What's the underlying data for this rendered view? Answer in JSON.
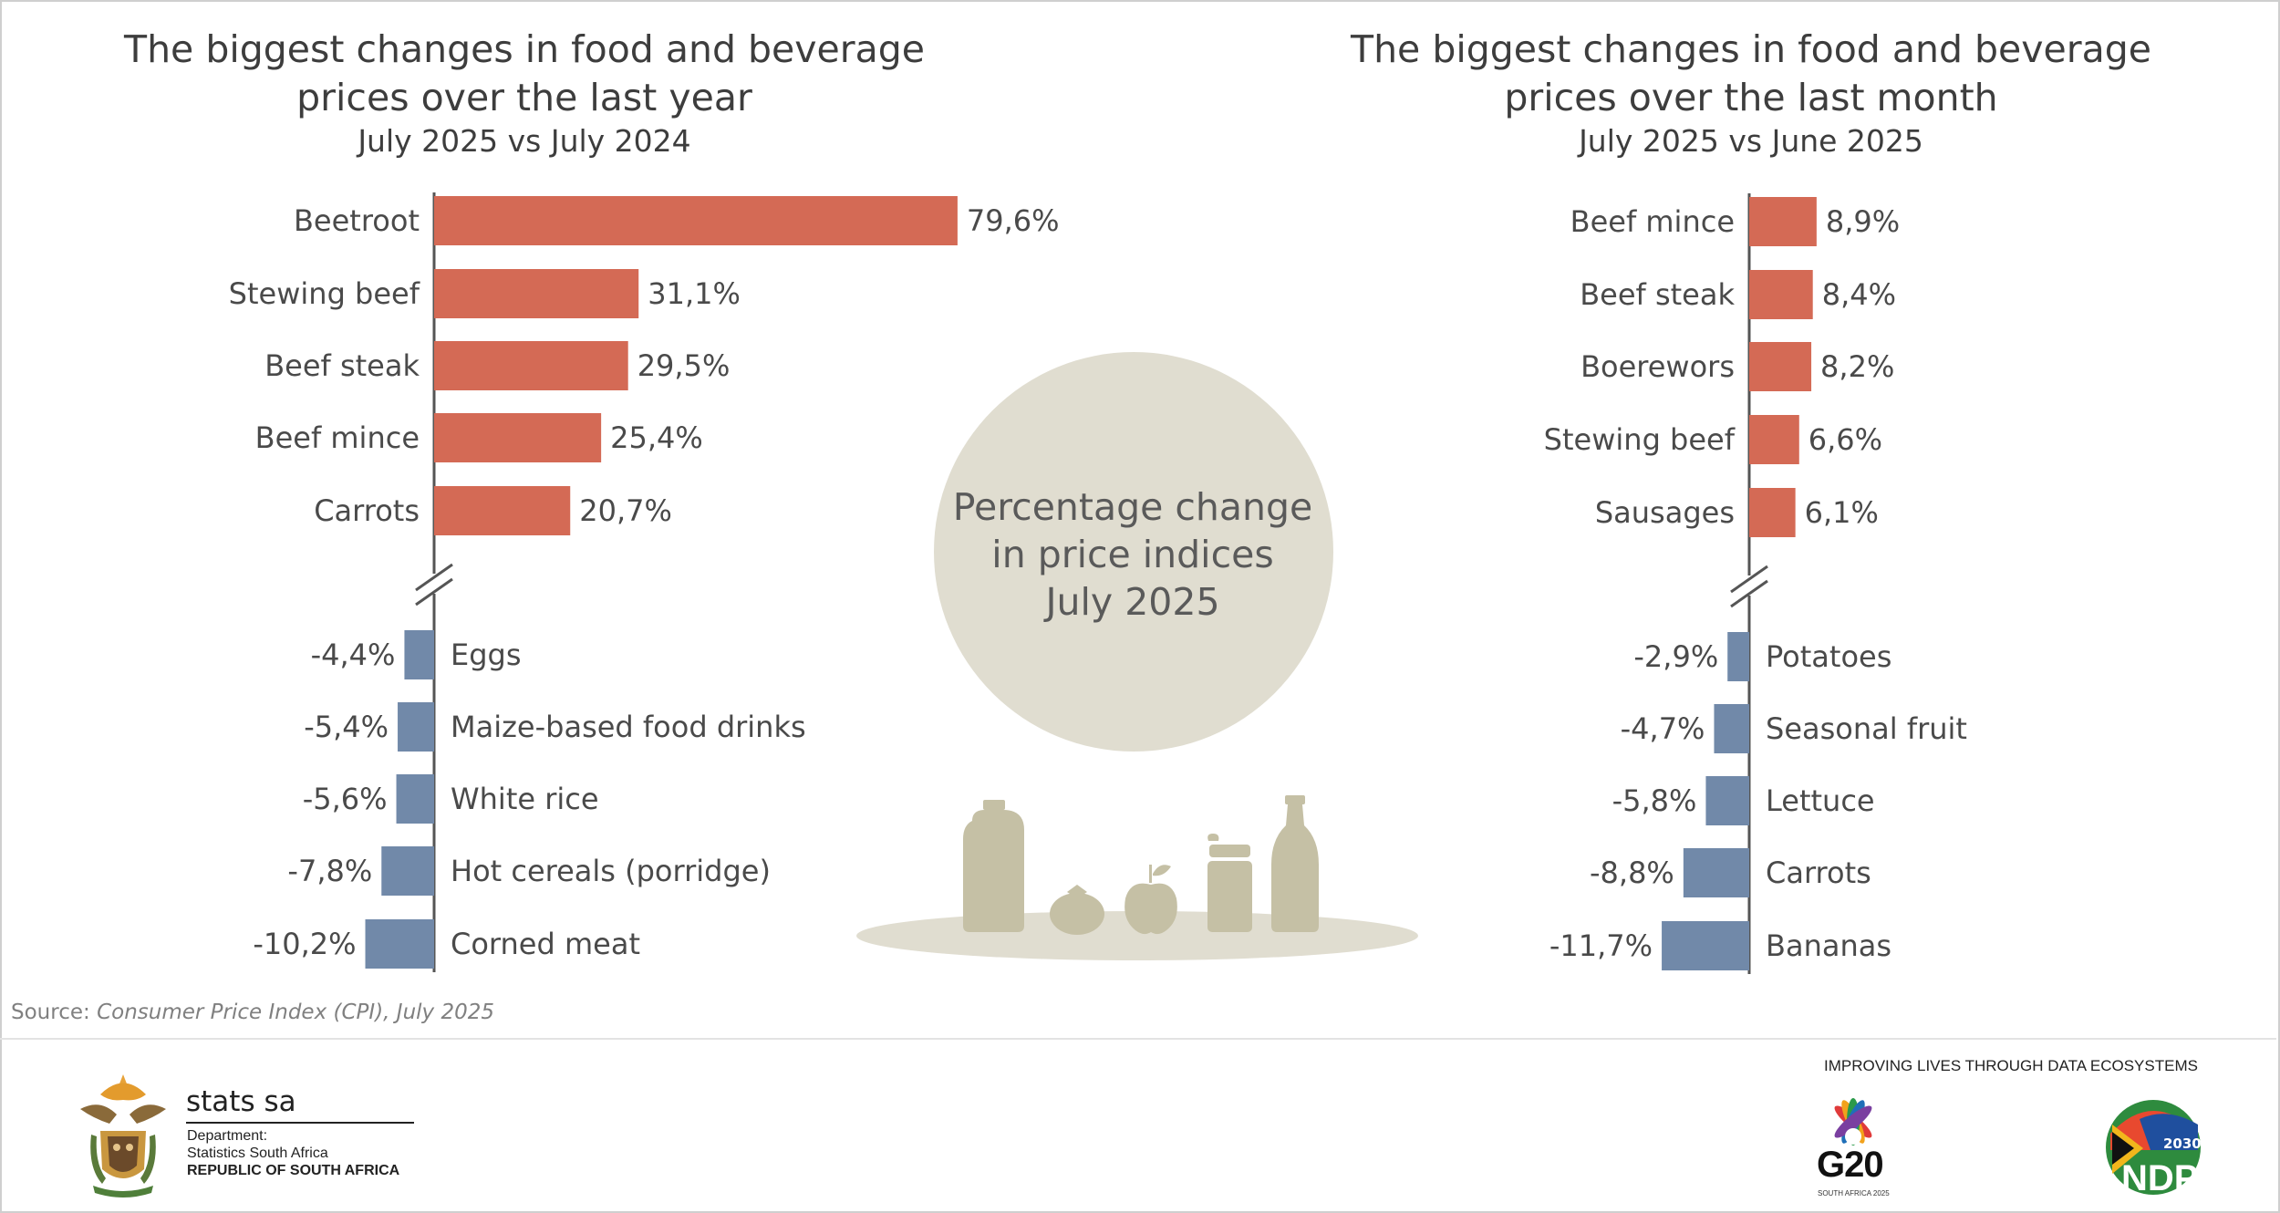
{
  "chart_data": [
    {
      "type": "bar",
      "orientation": "horizontal",
      "title": "The biggest changes in food and beverage prices over the last year",
      "subtitle": "July 2025 vs July 2024",
      "categories": [
        "Beetroot",
        "Stewing beef",
        "Beef steak",
        "Beef mince",
        "Carrots",
        "Eggs",
        "Maize-based food drinks",
        "White rice",
        "Hot cereals (porridge)",
        "Corned meat"
      ],
      "values": [
        79.6,
        31.1,
        29.5,
        25.4,
        20.7,
        -4.4,
        -5.4,
        -5.6,
        -7.8,
        -10.2
      ],
      "value_labels": [
        "79,6%",
        "31,1%",
        "29,5%",
        "25,4%",
        "20,7%",
        "-4,4%",
        "-5,4%",
        "-5,6%",
        "-7,8%",
        "-10,2%"
      ],
      "axis_break": true
    },
    {
      "type": "bar",
      "orientation": "horizontal",
      "title": "The biggest changes in food and beverage prices over the last month",
      "subtitle": "July 2025 vs June 2025",
      "categories": [
        "Beef mince",
        "Beef steak",
        "Boerewors",
        "Stewing beef",
        "Sausages",
        "Potatoes",
        "Seasonal fruit",
        "Lettuce",
        "Carrots",
        "Bananas"
      ],
      "values": [
        8.9,
        8.4,
        8.2,
        6.6,
        6.1,
        -2.9,
        -4.7,
        -5.8,
        -8.8,
        -11.7
      ],
      "value_labels": [
        "8,9%",
        "8,4%",
        "8,2%",
        "6,6%",
        "6,1%",
        "-2,9%",
        "-4,7%",
        "-5,8%",
        "-8,8%",
        "-11,7%"
      ],
      "axis_break": true
    }
  ],
  "left": {
    "title_line1": "The biggest changes in food and beverage",
    "title_line2": "prices over the last year",
    "subtitle": "July 2025 vs July 2024"
  },
  "right": {
    "title_line1": "The biggest changes in food and beverage",
    "title_line2": "prices over the last month",
    "subtitle": "July 2025 vs June 2025"
  },
  "center": {
    "line1": "Percentage change",
    "line2": "in price indices",
    "line3": "July 2025"
  },
  "source": {
    "label": "Source: ",
    "text": "Consumer Price Index (CPI), July 2025"
  },
  "footer": {
    "brand": "stats sa",
    "dept_line1": "Department:",
    "dept_line2": "Statistics South Africa",
    "dept_line3": "REPUBLIC OF SOUTH AFRICA",
    "tagline": "IMPROVING LIVES THROUGH DATA ECOSYSTEMS",
    "g20": "G20",
    "g20_sub": "SOUTH AFRICA 2025",
    "ndp": "NDP",
    "ndp_year": "2030"
  },
  "colors": {
    "positive": "#d46a55",
    "negative": "#7189a9",
    "circle": "#e0ddd0",
    "illustration": "#c5c0a5",
    "axis": "#555555"
  }
}
